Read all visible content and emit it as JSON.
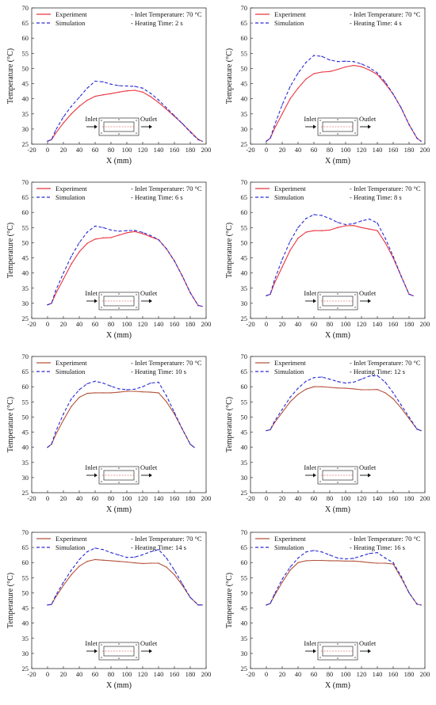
{
  "chart_data": [
    {
      "type": "line",
      "x": [
        0,
        5,
        10,
        20,
        30,
        40,
        50,
        60,
        70,
        80,
        90,
        100,
        110,
        120,
        130,
        140,
        150,
        160,
        170,
        180,
        190,
        195
      ],
      "series": [
        {
          "name": "Experiment",
          "values": [
            26,
            26.5,
            28.5,
            32,
            35,
            37.5,
            39.5,
            40.8,
            41.3,
            41.7,
            42.2,
            42.6,
            42.8,
            42.2,
            40.7,
            38.8,
            36.5,
            34.2,
            31.8,
            29.2,
            26.6,
            26
          ]
        },
        {
          "name": "Simulation",
          "values": [
            26,
            26.5,
            29.5,
            34,
            37.5,
            40.5,
            43.5,
            45.8,
            45.6,
            44.8,
            44.3,
            44.2,
            44.1,
            43.5,
            41.8,
            39.6,
            37,
            34.4,
            31.8,
            29,
            26.5,
            26
          ]
        }
      ],
      "xlabel": "X (mm)",
      "ylabel": "Temperature (°C)",
      "xlim": [
        -20,
        200
      ],
      "ylim": [
        25,
        70
      ],
      "xticks": [
        "-20",
        "0",
        "20",
        "40",
        "60",
        "80",
        "100",
        "120",
        "140",
        "160",
        "180",
        "200"
      ],
      "yticks": [
        "25",
        "30",
        "35",
        "40",
        "45",
        "50",
        "55",
        "60",
        "65",
        "70"
      ],
      "legend": {
        "experiment": "Experiment",
        "simulation": "Simulation"
      },
      "annotations": [
        "- Inlet Temperature: 70 °C",
        "- Heating Time: 2 s"
      ],
      "inset": {
        "inlet": "Inlet",
        "outlet": "Outlet"
      }
    },
    {
      "type": "line",
      "x": [
        0,
        5,
        10,
        20,
        30,
        40,
        50,
        60,
        70,
        80,
        90,
        100,
        110,
        120,
        130,
        140,
        150,
        160,
        170,
        180,
        190,
        195
      ],
      "series": [
        {
          "name": "Experiment",
          "values": [
            26,
            27,
            30,
            35,
            40,
            43.5,
            46.5,
            48.3,
            48.8,
            49,
            49.7,
            50.5,
            51,
            50.6,
            49.5,
            48,
            45,
            41.5,
            37,
            31.5,
            27,
            26
          ]
        },
        {
          "name": "Simulation",
          "values": [
            26,
            27,
            31,
            38,
            44,
            48.5,
            52,
            54.3,
            54,
            52.8,
            52.3,
            52.4,
            52.3,
            51.5,
            50.3,
            48.5,
            45.5,
            41.5,
            37,
            31.5,
            27,
            26
          ]
        }
      ],
      "xlabel": "X (mm)",
      "ylabel": "Temperature (°C)",
      "xlim": [
        -20,
        200
      ],
      "ylim": [
        25,
        70
      ],
      "xticks": [
        "-20",
        "0",
        "20",
        "40",
        "60",
        "80",
        "100",
        "120",
        "140",
        "160",
        "180",
        "200"
      ],
      "yticks": [
        "25",
        "30",
        "35",
        "40",
        "45",
        "50",
        "55",
        "60",
        "65",
        "70"
      ],
      "legend": {
        "experiment": "Experiment",
        "simulation": "Simulation"
      },
      "annotations": [
        "- Inlet Temperature: 70 °C",
        "- Heating Time: 4 s"
      ],
      "inset": {
        "inlet": "Inlet",
        "outlet": "Outlet"
      }
    },
    {
      "type": "line",
      "x": [
        0,
        5,
        10,
        20,
        30,
        40,
        50,
        60,
        70,
        80,
        90,
        100,
        110,
        120,
        130,
        140,
        150,
        160,
        170,
        180,
        190,
        195
      ],
      "series": [
        {
          "name": "Experiment",
          "values": [
            29.5,
            30,
            33,
            38,
            43,
            47,
            49.8,
            51.2,
            51.6,
            51.7,
            52.5,
            53.3,
            53.7,
            53,
            52,
            51,
            48,
            44,
            39,
            33.5,
            29.3,
            29
          ]
        },
        {
          "name": "Simulation",
          "values": [
            29.5,
            30,
            34,
            40,
            45.5,
            50,
            53.5,
            55.5,
            55,
            54.2,
            53.8,
            54,
            54.1,
            53.4,
            52.4,
            51,
            48,
            44,
            39,
            33.5,
            29.3,
            29
          ]
        }
      ],
      "xlabel": "X (mm)",
      "ylabel": "Temperature (°C)",
      "xlim": [
        -20,
        200
      ],
      "ylim": [
        25,
        70
      ],
      "xticks": [
        "-20",
        "0",
        "20",
        "40",
        "60",
        "80",
        "100",
        "120",
        "140",
        "160",
        "180",
        "200"
      ],
      "yticks": [
        "25",
        "30",
        "35",
        "40",
        "45",
        "50",
        "55",
        "60",
        "65",
        "70"
      ],
      "legend": {
        "experiment": "Experiment",
        "simulation": "Simulation"
      },
      "annotations": [
        "- Inlet Temperature: 70 °C",
        "- Heating Time: 6 s"
      ],
      "inset": {
        "inlet": "Inlet",
        "outlet": "Outlet"
      }
    },
    {
      "type": "line",
      "x": [
        0,
        5,
        10,
        20,
        30,
        40,
        50,
        60,
        70,
        80,
        90,
        100,
        110,
        120,
        130,
        140,
        150,
        160,
        170,
        180,
        185
      ],
      "series": [
        {
          "name": "Experiment",
          "values": [
            32.5,
            33,
            36.5,
            42,
            47.5,
            51.5,
            53.5,
            54,
            54,
            54.2,
            55,
            55.6,
            55.7,
            55,
            54.5,
            54,
            50,
            45,
            39,
            33,
            32.5
          ]
        },
        {
          "name": "Simulation",
          "values": [
            32.5,
            33,
            37.5,
            44.5,
            50.5,
            55,
            58,
            59.3,
            59,
            58,
            56.7,
            56,
            56.3,
            57.2,
            57.8,
            56.5,
            51.5,
            45.5,
            39,
            33,
            32.5
          ]
        }
      ],
      "xlabel": "X (mm)",
      "ylabel": "Temperature (°C)",
      "xlim": [
        -20,
        200
      ],
      "ylim": [
        25,
        70
      ],
      "xticks": [
        "-20",
        "0",
        "20",
        "40",
        "60",
        "80",
        "100",
        "120",
        "140",
        "160",
        "180",
        "200"
      ],
      "yticks": [
        "25",
        "30",
        "35",
        "40",
        "45",
        "50",
        "55",
        "60",
        "65",
        "70"
      ],
      "legend": {
        "experiment": "Experiment",
        "simulation": "Simulation"
      },
      "annotations": [
        "- Inlet Temperature: 70 °C",
        "- Heating Time: 8 s"
      ],
      "inset": {
        "inlet": "Inlet",
        "outlet": "Outlet"
      }
    },
    {
      "type": "line",
      "x": [
        0,
        5,
        10,
        20,
        30,
        40,
        50,
        60,
        70,
        80,
        90,
        100,
        110,
        120,
        130,
        140,
        150,
        160,
        170,
        180,
        185
      ],
      "series": [
        {
          "name": "Experiment",
          "values": [
            40,
            41,
            44,
            49,
            53.5,
            56.5,
            57.8,
            58,
            58,
            58,
            58.2,
            58.5,
            58.5,
            58.3,
            58.2,
            58,
            55,
            51,
            46,
            41,
            40
          ]
        },
        {
          "name": "Simulation",
          "values": [
            40,
            41,
            45,
            51,
            56,
            59,
            61,
            61.8,
            61.2,
            60.2,
            59.3,
            59,
            59.2,
            60,
            61.2,
            61.5,
            57,
            51.5,
            46,
            41,
            40
          ]
        }
      ],
      "xlabel": "X (mm)",
      "ylabel": "Temperature (°C)",
      "xlim": [
        -20,
        200
      ],
      "ylim": [
        25,
        70
      ],
      "xticks": [
        "-20",
        "0",
        "20",
        "40",
        "60",
        "80",
        "100",
        "120",
        "140",
        "160",
        "180",
        "200"
      ],
      "yticks": [
        "25",
        "30",
        "35",
        "40",
        "45",
        "50",
        "55",
        "60",
        "65",
        "70"
      ],
      "legend": {
        "experiment": "Experiment",
        "simulation": "Simulation"
      },
      "annotations": [
        "- Inlet Temperature: 70 °C",
        "- Heating Time: 10 s"
      ],
      "inset": {
        "inlet": "Inlet",
        "outlet": "Outlet"
      }
    },
    {
      "type": "line",
      "x": [
        0,
        5,
        10,
        20,
        30,
        40,
        50,
        60,
        70,
        80,
        90,
        100,
        110,
        120,
        130,
        140,
        150,
        160,
        170,
        180,
        190,
        195
      ],
      "series": [
        {
          "name": "Experiment",
          "values": [
            45.5,
            45.8,
            48,
            51.5,
            55,
            57.5,
            59.2,
            60,
            60,
            59.8,
            59.6,
            59.5,
            59.3,
            59,
            59,
            59.1,
            58,
            56,
            53,
            49.5,
            46,
            45.5
          ]
        },
        {
          "name": "Simulation",
          "values": [
            45.5,
            45.8,
            48.5,
            52.5,
            56.5,
            59.5,
            61.8,
            63,
            63.2,
            62.5,
            61.7,
            61.2,
            61.5,
            62.5,
            63.5,
            63.7,
            61.5,
            58,
            54,
            50,
            46,
            45.5
          ]
        }
      ],
      "xlabel": "X (mm)",
      "ylabel": "Temperature (°C)",
      "xlim": [
        -20,
        200
      ],
      "ylim": [
        25,
        70
      ],
      "xticks": [
        "-20",
        "0",
        "20",
        "40",
        "60",
        "80",
        "100",
        "120",
        "140",
        "160",
        "180",
        "200"
      ],
      "yticks": [
        "25",
        "30",
        "35",
        "40",
        "45",
        "50",
        "55",
        "60",
        "65",
        "70"
      ],
      "legend": {
        "experiment": "Experiment",
        "simulation": "Simulation"
      },
      "annotations": [
        "- Inlet Temperature: 70 °C",
        "- Heating Time: 12 s"
      ],
      "inset": {
        "inlet": "Inlet",
        "outlet": "Outlet"
      }
    },
    {
      "type": "line",
      "x": [
        0,
        5,
        10,
        20,
        30,
        40,
        50,
        60,
        70,
        80,
        90,
        100,
        110,
        120,
        130,
        140,
        150,
        160,
        170,
        180,
        190,
        195
      ],
      "series": [
        {
          "name": "Experiment",
          "values": [
            46,
            46.2,
            48.5,
            52.5,
            56,
            58.8,
            60.4,
            61,
            60.8,
            60.6,
            60.4,
            60.2,
            59.9,
            59.7,
            59.8,
            59.8,
            58.5,
            56,
            52.5,
            48.5,
            46,
            46
          ]
        },
        {
          "name": "Simulation",
          "values": [
            46,
            46.2,
            49,
            53.5,
            57.5,
            61,
            63.6,
            64.8,
            64.3,
            63.3,
            62.5,
            61.7,
            61.8,
            62.6,
            63.6,
            64.3,
            61.5,
            57.5,
            53,
            48.5,
            46,
            46
          ]
        }
      ],
      "xlabel": "X (mm)",
      "ylabel": "Temperature (°C)",
      "xlim": [
        -20,
        200
      ],
      "ylim": [
        25,
        70
      ],
      "xticks": [
        "-20",
        "0",
        "20",
        "40",
        "60",
        "80",
        "100",
        "120",
        "140",
        "160",
        "180",
        "200"
      ],
      "yticks": [
        "25",
        "30",
        "35",
        "40",
        "45",
        "50",
        "55",
        "60",
        "65",
        "70"
      ],
      "legend": {
        "experiment": "Experiment",
        "simulation": "Simulation"
      },
      "annotations": [
        "- Inlet Temperature: 70 °C",
        "- Heating Time: 14 s"
      ],
      "inset": {
        "inlet": "Inlet",
        "outlet": "Outlet"
      }
    },
    {
      "type": "line",
      "x": [
        0,
        5,
        10,
        20,
        30,
        40,
        50,
        60,
        70,
        80,
        90,
        100,
        110,
        120,
        130,
        140,
        150,
        160,
        170,
        180,
        190,
        195
      ],
      "series": [
        {
          "name": "Experiment",
          "values": [
            46,
            46.5,
            49,
            53.5,
            57.5,
            60,
            60.6,
            60.7,
            60.7,
            60.6,
            60.6,
            60.5,
            60.5,
            60.3,
            60,
            59.8,
            59.8,
            59.5,
            55,
            50,
            46.3,
            46
          ]
        },
        {
          "name": "Simulation",
          "values": [
            46,
            46.5,
            49.5,
            54.5,
            58.5,
            61.5,
            63.5,
            64,
            63.5,
            62.5,
            61.5,
            61.2,
            61.4,
            62.2,
            63,
            63.3,
            61.5,
            60,
            55.5,
            50,
            46.3,
            46
          ]
        }
      ],
      "xlabel": "X (mm)",
      "ylabel": "Temperature (°C)",
      "xlim": [
        -20,
        200
      ],
      "ylim": [
        25,
        70
      ],
      "xticks": [
        "-20",
        "0",
        "20",
        "40",
        "60",
        "80",
        "100",
        "120",
        "140",
        "160",
        "180",
        "200"
      ],
      "yticks": [
        "25",
        "30",
        "35",
        "40",
        "45",
        "50",
        "55",
        "60",
        "65",
        "70"
      ],
      "legend": {
        "experiment": "Experiment",
        "simulation": "Simulation"
      },
      "annotations": [
        "- Inlet Temperature: 70 °C",
        "- Heating Time: 16 s"
      ],
      "inset": {
        "inlet": "Inlet",
        "outlet": "Outlet"
      }
    }
  ],
  "colors": {
    "experiment_red": "#e8353f",
    "experiment_brown": "#b5533c",
    "simulation": "#2b2bd6",
    "axis": "#333333"
  }
}
